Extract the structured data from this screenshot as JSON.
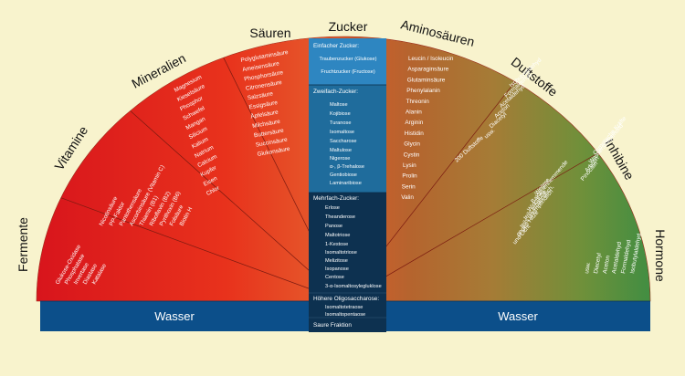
{
  "title": "Zucker",
  "water_label": "Wasser",
  "colors": {
    "water": "#0c4f8a",
    "zucker_upper": "#2e86c1",
    "zucker_lower": "#0d3150",
    "zucker_mid": "#1f6c9c",
    "background": "#f8f3cd"
  },
  "sectors": [
    {
      "name": "Fermente",
      "items": [
        "Glukose-Oxidase",
        "Phosphatase",
        "Invertase",
        "Diastase",
        "Katalase"
      ]
    },
    {
      "name": "Vitamine",
      "items": [
        "Nicotinsäure",
        "PP-Faktor",
        "Pantothensäure",
        "Ascorbinsäure (Vitamin C)",
        "Thiamin (B1)",
        "Riboflavin (B2)",
        "Pyrithoxin (B6)",
        "Folsäure",
        "Biotin H"
      ]
    },
    {
      "name": "Mineralien",
      "items": [
        "Magnesium",
        "Kieselsäure",
        "Phosphor",
        "Schwefel",
        "Mangan",
        "Silicium",
        "Kalium",
        "Natrium",
        "Calcium",
        "Kupfer",
        "Eisen",
        "Chlor"
      ]
    },
    {
      "name": "Säuren",
      "items": [
        "Polyglutaminsäure",
        "Ameisensäure",
        "Phosphorsäure",
        "Citronensäure",
        "Salzsäure",
        "Essigsäure",
        "Äpfelsäure",
        "Milchsäure",
        "Buttersäure",
        "Succinsäure",
        "Glukonsäure"
      ]
    },
    {
      "name": "Aminosäuren",
      "items": [
        "Leucin / Isoleucin",
        "Asparaginsäure",
        "Glutaminsäure",
        "Phenylalanin",
        "Threonin",
        "Alanin",
        "Arginin",
        "Histidin",
        "Glycin",
        "Cystin",
        "Lysin",
        "Prolin",
        "Serin",
        "Valin"
      ]
    },
    {
      "name": "Duftstoffe",
      "items": [
        "Isobutylaldehyd",
        "Formaldehyd",
        "Acetaldehyd",
        "Aceton",
        "Diacetyl",
        "usw.",
        "200 Duftstoffe"
      ]
    },
    {
      "name": "Inhibine",
      "items": [
        "Osmotische Kräfte",
        "Wasserstoffperoxid",
        "Arbutin",
        "Pinocillin",
        "Weitere",
        "Bakterienhemmende",
        "Wirkstoffe",
        "teils empfindlich,",
        "teils unempfindlich",
        "gegen Hitze",
        "und Licht"
      ]
    },
    {
      "name": "Hormone",
      "items": [
        "Isobutylaldehyd",
        "Formaldehyd",
        "Acetaldehyd",
        "Aceton",
        "Diacetyl",
        "usw."
      ]
    }
  ],
  "zucker": {
    "einfach": {
      "heading": "Einfacher Zucker:",
      "items": [
        "Traubenzucker (Glukose)",
        "Fruchtzucker (Fructose)"
      ]
    },
    "zweifach": {
      "heading": "Zweifach-Zucker:",
      "items": [
        "Maltose",
        "Kojibiose",
        "Turanose",
        "Isomaltose",
        "Saccharose",
        "Maltulose",
        "Nigerose",
        "α-, β-Trehalose",
        "Gentiobiose",
        "Laminaribiose"
      ]
    },
    "mehrfach": {
      "heading": "Mehrfach-Zucker:",
      "items": [
        "Erlose",
        "Theanderose",
        "Panose",
        "Maltotriose",
        "1-Kestose",
        "Isomaltotriose",
        "Melizitose",
        "Isopanose",
        "Centose",
        "3-α-Isomaltosylegluklose"
      ]
    },
    "oligo": {
      "heading": "Höhere Oligosaccharose:",
      "items": [
        "Isomaltotetraose",
        "Isomaltopentaose"
      ]
    },
    "saure": {
      "heading": "Saure Fraktion"
    }
  }
}
